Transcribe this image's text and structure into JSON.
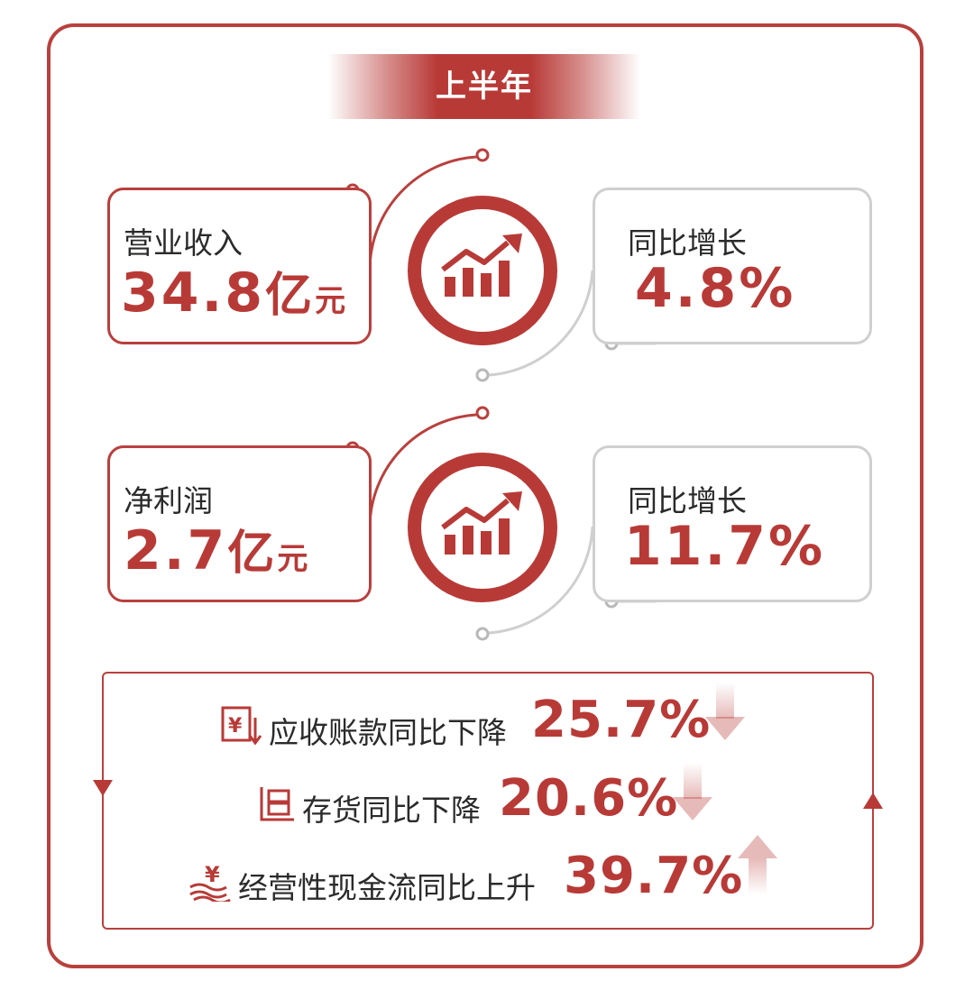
{
  "title": "上半年",
  "metrics": [
    {
      "label": "营业收入",
      "value": "34.8",
      "unit_big": "亿",
      "unit_small": "元",
      "growth_label": "同比增长",
      "growth_value": "4.8%"
    },
    {
      "label": "净利润",
      "value": "2.7",
      "unit_big": "亿",
      "unit_small": "元",
      "growth_label": "同比增长",
      "growth_value": "11.7%"
    }
  ],
  "changes": [
    {
      "icon": "receivable-icon",
      "text": "应收账款同比下降",
      "value": "25.7%",
      "direction": "down"
    },
    {
      "icon": "inventory-icon",
      "text": "存货同比下降",
      "value": "20.6%",
      "direction": "down"
    },
    {
      "icon": "cashflow-icon",
      "text": "经营性现金流同比上升",
      "value": "39.7%",
      "direction": "up"
    }
  ],
  "colors": {
    "accent": "#b83a37",
    "border_gray": "#cfcfcf",
    "text": "#2b2b2b"
  }
}
